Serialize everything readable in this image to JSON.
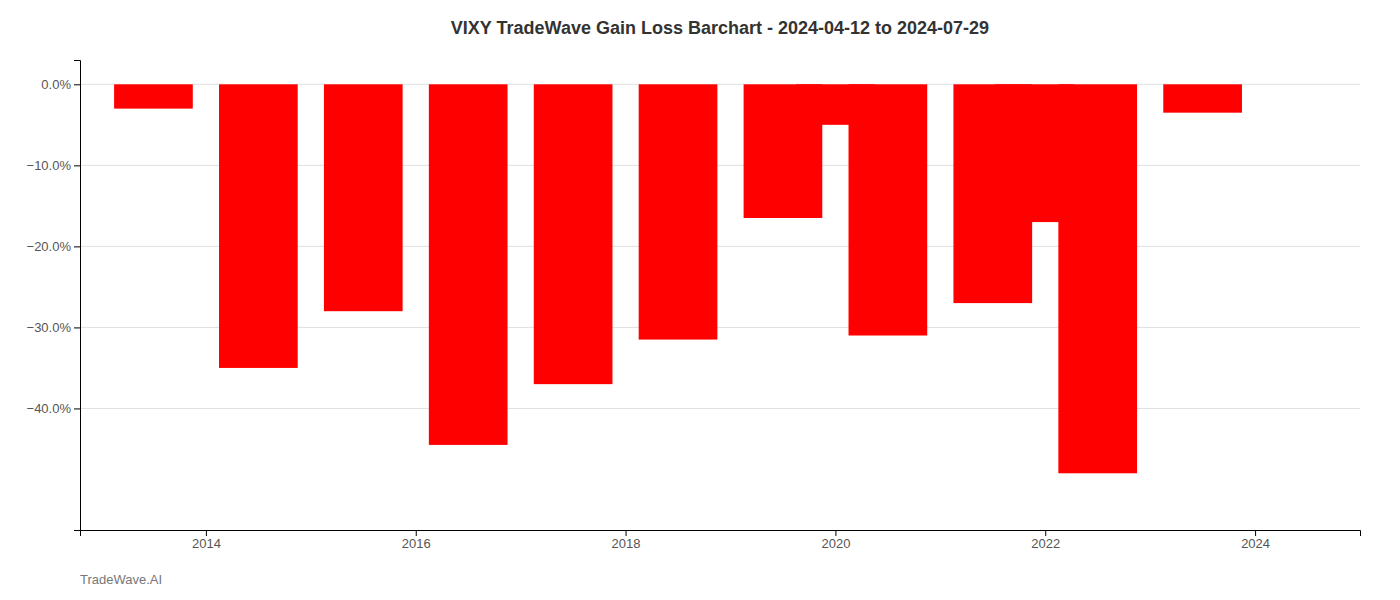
{
  "chart_data": {
    "type": "bar",
    "title": "VIXY TradeWave Gain Loss Barchart - 2024-04-12 to 2024-07-29",
    "annotations": [
      "TradeWave.AI"
    ],
    "x": [
      2013.5,
      2014.5,
      2015.5,
      2016.5,
      2017.5,
      2018.5,
      2019.5,
      2020.0,
      2020.5,
      2021.5,
      2021.9,
      2022.5,
      2023.5
    ],
    "values": [
      -3.0,
      -35.0,
      -28.0,
      -44.5,
      -37.0,
      -31.5,
      -16.5,
      -5.0,
      -31.0,
      -27.0,
      -17.0,
      -48.0,
      -3.5
    ],
    "color": "#ff0000",
    "xlim": [
      2012.8,
      2025.0
    ],
    "xticks": [
      2014,
      2016,
      2018,
      2020,
      2022,
      2024
    ],
    "ylim": [
      -55,
      3
    ],
    "yticks": [
      {
        "value": 0,
        "label": "0.0%"
      },
      {
        "value": -10,
        "label": "−10.0%"
      },
      {
        "value": -20,
        "label": "−20.0%"
      },
      {
        "value": -30,
        "label": "−30.0%"
      },
      {
        "value": -40,
        "label": "−40.0%"
      }
    ],
    "grid": true
  }
}
